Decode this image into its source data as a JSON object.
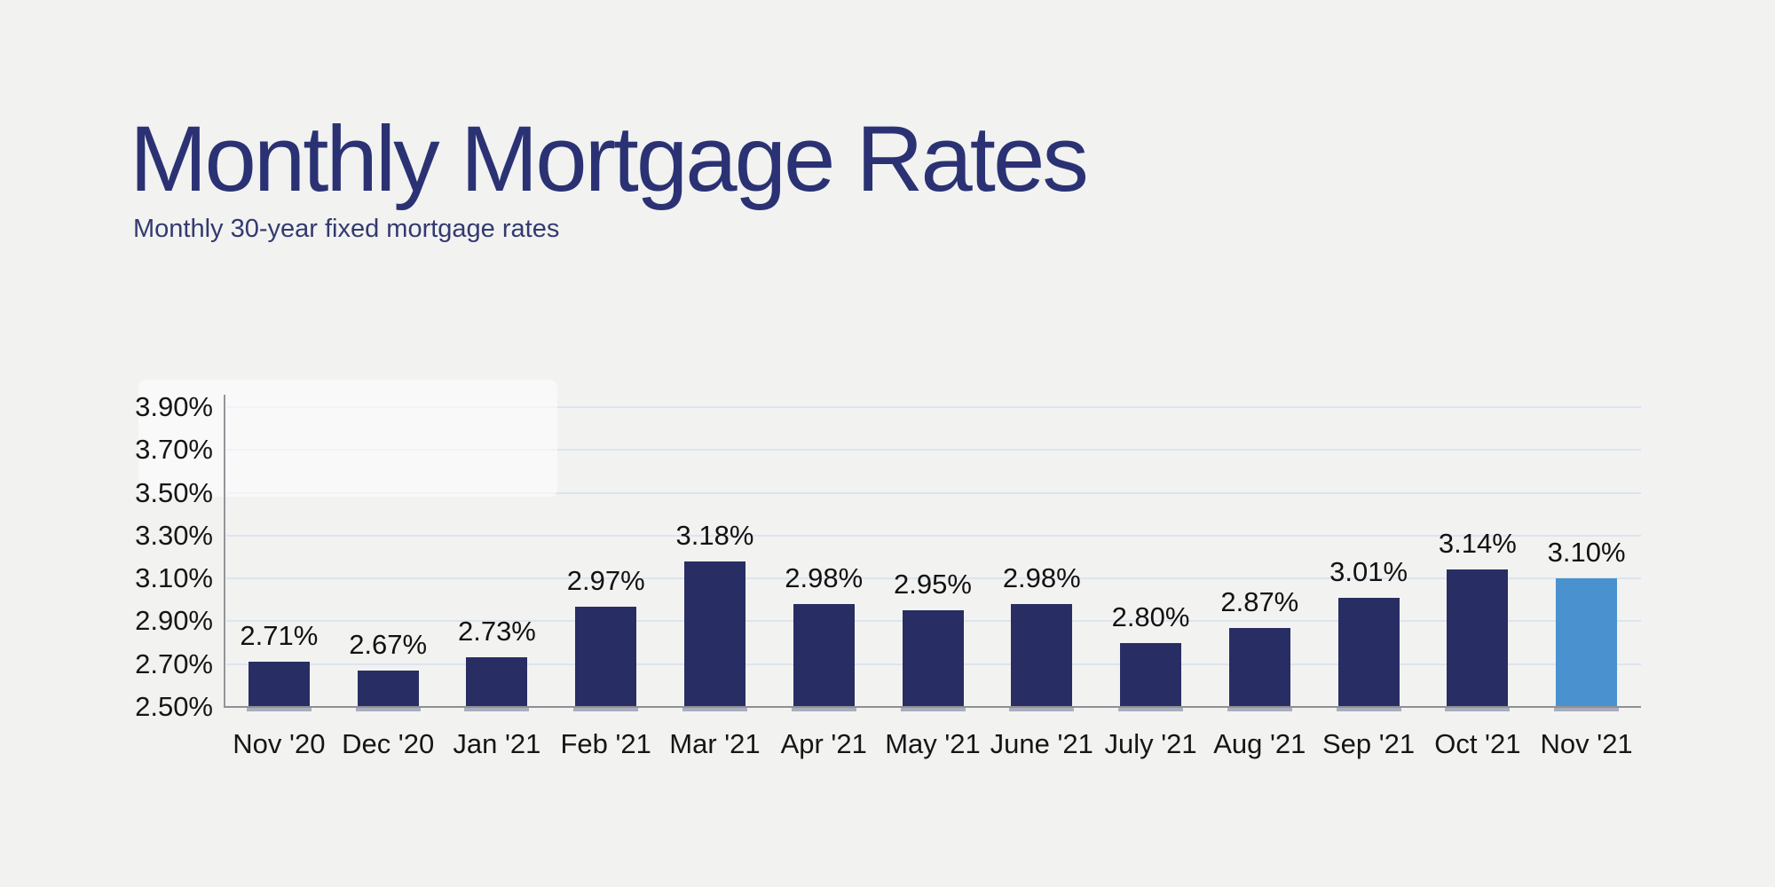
{
  "page": {
    "background": "#f2f2f1"
  },
  "header": {
    "title": "Monthly Mortgage Rates",
    "subtitle": "Monthly 30-year fixed mortgage rates"
  },
  "chart_data": {
    "type": "bar",
    "title": "Monthly Mortgage Rates",
    "subtitle": "Monthly 30-year fixed mortgage rates",
    "categories": [
      "Nov '20",
      "Dec '20",
      "Jan '21",
      "Feb '21",
      "Mar '21",
      "Apr '21",
      "May '21",
      "June '21",
      "July '21",
      "Aug '21",
      "Sep '21",
      "Oct '21",
      "Nov '21"
    ],
    "values": [
      2.71,
      2.67,
      2.73,
      2.97,
      3.18,
      2.98,
      2.95,
      2.98,
      2.8,
      2.87,
      3.01,
      3.14,
      3.1
    ],
    "value_labels": [
      "2.71%",
      "2.67%",
      "2.73%",
      "2.97%",
      "3.18%",
      "2.98%",
      "2.95%",
      "2.98%",
      "2.80%",
      "2.87%",
      "3.01%",
      "3.14%",
      "3.10%"
    ],
    "xlabel": "",
    "ylabel": "",
    "ylim": [
      2.5,
      3.9
    ],
    "ytick_step": 0.2,
    "ytick_values": [
      3.9,
      3.7,
      3.5,
      3.3,
      3.1,
      2.9,
      2.7,
      2.5
    ],
    "ytick_labels": [
      "3.90%",
      "3.70%",
      "3.50%",
      "3.30%",
      "3.10%",
      "2.90%",
      "2.70%",
      "2.50%"
    ],
    "grid": true,
    "legend": false,
    "highlight_index": 12,
    "bar_color": "#282e63",
    "highlight_color": "#4a91d0",
    "title_color": "#2b3273",
    "grid_color": "#dde4f0",
    "axis_color": "#8f9093",
    "background_color": "#f2f2f1"
  }
}
